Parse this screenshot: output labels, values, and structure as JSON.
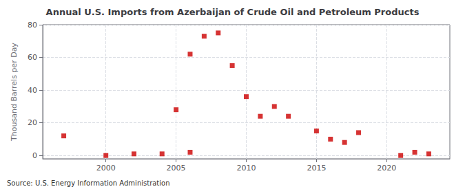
{
  "chart_data": {
    "type": "scatter",
    "title": "Annual U.S. Imports from Azerbaijan of Crude Oil and Petroleum Products",
    "y_label": "Thousand Barrels per Day",
    "annotations": [
      "Source: U.S. Energy Information Administration"
    ],
    "x": [
      1997,
      2000,
      2002,
      2004,
      2005,
      2006,
      2006,
      2007,
      2008,
      2009,
      2010,
      2011,
      2012,
      2013,
      2015,
      2016,
      2017,
      2018,
      2021,
      2022,
      2023
    ],
    "values": [
      12,
      0,
      1,
      1,
      28,
      62,
      2,
      73,
      75,
      55,
      36,
      24,
      30,
      24,
      15,
      10,
      8,
      14,
      0,
      2,
      1
    ],
    "color": "#cc0000",
    "marker": "square",
    "xlim": [
      1995.5,
      2024.5
    ],
    "xticks": [
      2000,
      2005,
      2010,
      2015,
      2020
    ],
    "ylim": [
      -2,
      80
    ],
    "yticks": [
      0,
      20,
      40,
      60,
      80
    ],
    "grid": true
  }
}
